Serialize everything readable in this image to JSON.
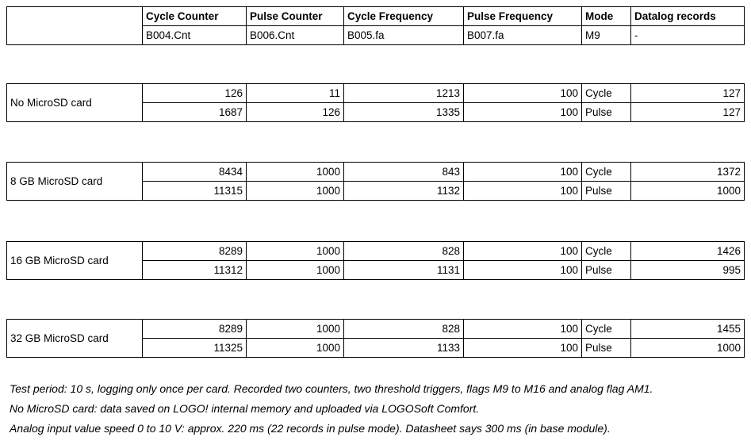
{
  "table": {
    "columns": [
      "",
      "Cycle Counter",
      "Pulse Counter",
      "Cycle Frequency",
      "Pulse Frequency",
      "Mode",
      "Datalog records"
    ],
    "subheader": [
      "",
      "B004.Cnt",
      "B006.Cnt",
      "B005.fa",
      "B007.fa",
      "M9",
      "-"
    ],
    "groups": [
      {
        "label": "No MicroSD card",
        "rows": [
          [
            "126",
            "11",
            "1213",
            "100",
            "Cycle",
            "127"
          ],
          [
            "1687",
            "126",
            "1335",
            "100",
            "Pulse",
            "127"
          ]
        ]
      },
      {
        "label": "8 GB MicroSD card",
        "rows": [
          [
            "8434",
            "1000",
            "843",
            "100",
            "Cycle",
            "1372"
          ],
          [
            "11315",
            "1000",
            "1132",
            "100",
            "Pulse",
            "1000"
          ]
        ]
      },
      {
        "label": "16 GB MicroSD card",
        "rows": [
          [
            "8289",
            "1000",
            "828",
            "100",
            "Cycle",
            "1426"
          ],
          [
            "11312",
            "1000",
            "1131",
            "100",
            "Pulse",
            "995"
          ]
        ]
      },
      {
        "label": "32 GB MicroSD card",
        "rows": [
          [
            "8289",
            "1000",
            "828",
            "100",
            "Cycle",
            "1455"
          ],
          [
            "11325",
            "1000",
            "1133",
            "100",
            "Pulse",
            "1000"
          ]
        ]
      }
    ]
  },
  "notes": [
    "Test period: 10 s, logging only once per card. Recorded two counters, two threshold triggers, flags M9 to M16 and analog flag AM1.",
    "No MicroSD card: data saved on LOGO! internal memory and uploaded via LOGOSoft Comfort.",
    "Analog input value speed 0 to 10 V: approx. 220 ms (22 records in pulse mode). Datasheet says 300 ms (in base module)."
  ],
  "colors": {
    "border": "#000000",
    "text": "#000000",
    "background": "#ffffff"
  }
}
